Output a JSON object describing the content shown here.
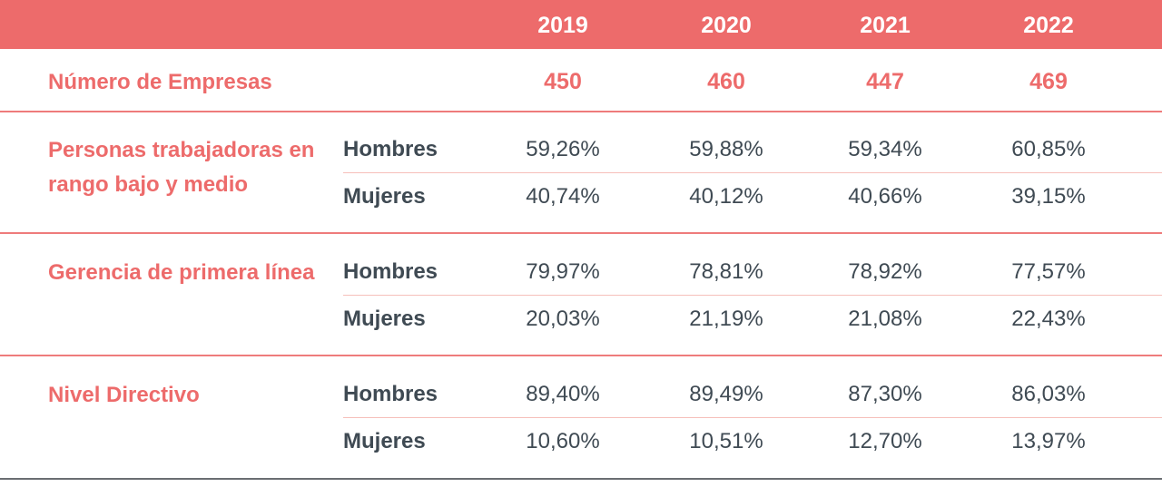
{
  "years": [
    "2019",
    "2020",
    "2021",
    "2022"
  ],
  "companies": {
    "label": "Número de Empresas",
    "values": [
      "450",
      "460",
      "447",
      "469"
    ]
  },
  "groups": [
    {
      "label": "Personas trabajadoras en rango bajo y medio",
      "rows": [
        {
          "label": "Hombres",
          "values": [
            "59,26%",
            "59,88%",
            "59,34%",
            "60,85%"
          ]
        },
        {
          "label": "Mujeres",
          "values": [
            "40,74%",
            "40,12%",
            "40,66%",
            "39,15%"
          ]
        }
      ]
    },
    {
      "label": "Gerencia de primera línea",
      "rows": [
        {
          "label": "Hombres",
          "values": [
            "79,97%",
            "78,81%",
            "78,92%",
            "77,57%"
          ]
        },
        {
          "label": "Mujeres",
          "values": [
            "20,03%",
            "21,19%",
            "21,08%",
            "22,43%"
          ]
        }
      ]
    },
    {
      "label": "Nivel Directivo",
      "rows": [
        {
          "label": "Hombres",
          "values": [
            "89,40%",
            "89,49%",
            "87,30%",
            "86,03%"
          ]
        },
        {
          "label": "Mujeres",
          "values": [
            "10,60%",
            "10,51%",
            "12,70%",
            "13,97%"
          ]
        }
      ]
    }
  ],
  "colors": {
    "accent": "#ED6B6B",
    "text": "#3F4A53"
  }
}
